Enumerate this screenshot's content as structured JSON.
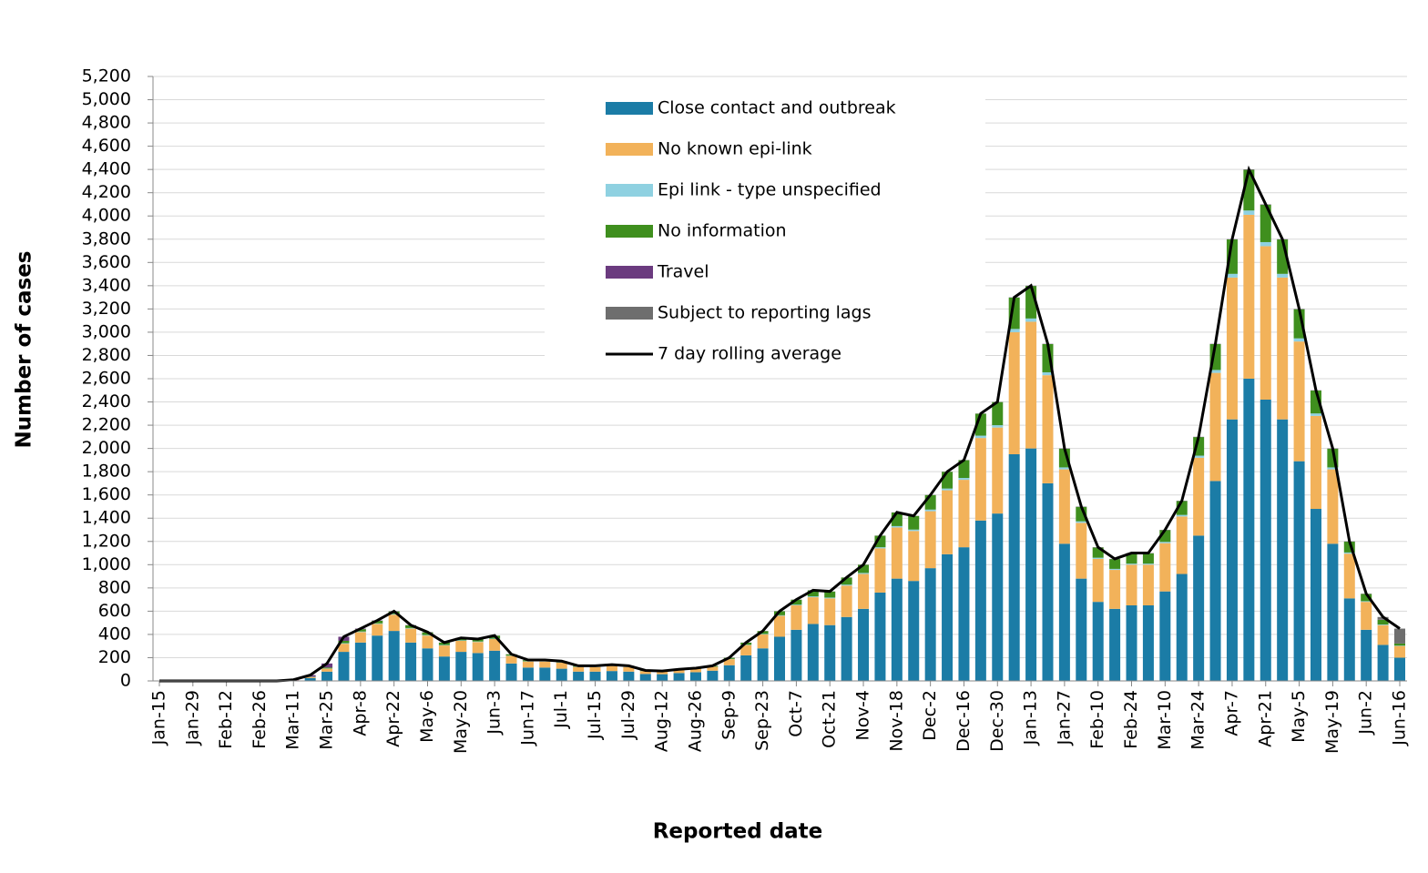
{
  "chart_data": {
    "type": "bar",
    "stacked": true,
    "x_label": "Reported date",
    "y_label": "Number of cases",
    "categories": [
      "Jan-15",
      null,
      "Jan-29",
      null,
      "Feb-12",
      null,
      "Feb-26",
      null,
      "Mar-11",
      null,
      "Mar-25",
      null,
      "Apr-8",
      null,
      "Apr-22",
      null,
      "May-6",
      null,
      "May-20",
      null,
      "Jun-3",
      null,
      "Jun-17",
      null,
      "Jul-1",
      null,
      "Jul-15",
      null,
      "Jul-29",
      null,
      "Aug-12",
      null,
      "Aug-26",
      null,
      "Sep-9",
      null,
      "Sep-23",
      null,
      "Oct-7",
      null,
      "Oct-21",
      null,
      "Nov-4",
      null,
      "Nov-18",
      null,
      "Dec-2",
      null,
      "Dec-16",
      null,
      "Dec-30",
      null,
      "Jan-13",
      null,
      "Jan-27",
      null,
      "Feb-10",
      null,
      "Feb-24",
      null,
      "Mar-10",
      null,
      "Mar-24",
      null,
      "Apr-7",
      null,
      "Apr-21",
      null,
      "May-5",
      null,
      "May-19",
      null,
      "Jun-2",
      null,
      "Jun-16"
    ],
    "series": [
      {
        "name": "Close contact and outbreak",
        "color": "#1b7ca6",
        "values": [
          0,
          0,
          0,
          0,
          0,
          0,
          0,
          0,
          4,
          25,
          80,
          250,
          330,
          390,
          430,
          330,
          280,
          210,
          250,
          240,
          260,
          150,
          115,
          115,
          105,
          80,
          80,
          85,
          80,
          60,
          58,
          68,
          75,
          88,
          135,
          220,
          280,
          380,
          440,
          490,
          480,
          550,
          620,
          760,
          880,
          860,
          970,
          1090,
          1150,
          1380,
          1440,
          1950,
          2000,
          1700,
          1180,
          880,
          680,
          620,
          650,
          650,
          770,
          920,
          1250,
          1720,
          2250,
          2600,
          2420,
          2250,
          1890,
          1480,
          1180,
          710,
          440,
          310,
          200
        ]
      },
      {
        "name": "No known epi-link",
        "color": "#f2b25a",
        "values": [
          0,
          0,
          0,
          0,
          0,
          0,
          0,
          0,
          2,
          8,
          25,
          70,
          90,
          100,
          140,
          120,
          110,
          95,
          95,
          95,
          100,
          65,
          52,
          52,
          52,
          40,
          40,
          44,
          40,
          24,
          21,
          26,
          28,
          33,
          52,
          88,
          120,
          180,
          210,
          230,
          230,
          270,
          300,
          380,
          440,
          430,
          490,
          550,
          580,
          710,
          740,
          1050,
          1090,
          930,
          640,
          480,
          370,
          335,
          350,
          350,
          415,
          495,
          670,
          930,
          1220,
          1410,
          1320,
          1220,
          1030,
          800,
          640,
          385,
          240,
          170,
          100
        ]
      },
      {
        "name": "Epi link - type unspecified",
        "color": "#8fd1e1",
        "values": [
          0,
          0,
          0,
          0,
          0,
          0,
          0,
          0,
          0,
          1,
          2,
          5,
          5,
          5,
          5,
          5,
          5,
          4,
          4,
          4,
          4,
          3,
          2,
          2,
          2,
          2,
          2,
          2,
          2,
          1,
          1,
          1,
          1,
          1,
          2,
          3,
          4,
          5,
          6,
          7,
          7,
          8,
          9,
          10,
          12,
          12,
          14,
          15,
          16,
          20,
          20,
          28,
          28,
          25,
          17,
          13,
          10,
          9,
          9,
          9,
          11,
          13,
          18,
          25,
          32,
          37,
          35,
          32,
          27,
          21,
          17,
          10,
          6,
          5,
          3
        ]
      },
      {
        "name": "No information",
        "color": "#3f8f1e",
        "values": [
          0,
          0,
          0,
          0,
          0,
          0,
          0,
          0,
          0,
          2,
          8,
          20,
          20,
          22,
          23,
          23,
          23,
          20,
          20,
          20,
          25,
          11,
          10,
          10,
          10,
          7,
          7,
          8,
          7,
          4,
          4,
          4,
          5,
          7,
          10,
          18,
          25,
          34,
          43,
          52,
          52,
          61,
          70,
          99,
          117,
          117,
          125,
          144,
          153,
          189,
          199,
          270,
          280,
          243,
          161,
          125,
          88,
          84,
          89,
          89,
          102,
          120,
          160,
          223,
          296,
          350,
          322,
          296,
          251,
          197,
          161,
          93,
          62,
          40,
          20
        ]
      },
      {
        "name": "Travel",
        "color": "#6b3b7f",
        "values": [
          0,
          0,
          0,
          0,
          0,
          0,
          0,
          0,
          4,
          14,
          35,
          35,
          5,
          3,
          2,
          2,
          2,
          1,
          1,
          1,
          1,
          1,
          1,
          1,
          1,
          1,
          1,
          1,
          1,
          1,
          1,
          1,
          1,
          1,
          1,
          1,
          1,
          1,
          1,
          1,
          1,
          1,
          1,
          1,
          1,
          1,
          1,
          1,
          1,
          1,
          1,
          2,
          2,
          2,
          2,
          2,
          2,
          2,
          2,
          2,
          2,
          2,
          2,
          2,
          2,
          3,
          3,
          2,
          2,
          2,
          2,
          2,
          2,
          2,
          2
        ]
      },
      {
        "name": "Subject to reporting lags",
        "color": "#6e6e6e",
        "values": [
          0,
          0,
          0,
          0,
          0,
          0,
          0,
          0,
          0,
          0,
          0,
          0,
          0,
          0,
          0,
          0,
          0,
          0,
          0,
          0,
          0,
          0,
          0,
          0,
          0,
          0,
          0,
          0,
          0,
          0,
          0,
          0,
          0,
          0,
          0,
          0,
          0,
          0,
          0,
          0,
          0,
          0,
          0,
          0,
          0,
          0,
          0,
          0,
          0,
          0,
          0,
          0,
          0,
          0,
          0,
          0,
          0,
          0,
          0,
          0,
          0,
          0,
          0,
          0,
          0,
          0,
          0,
          0,
          0,
          0,
          0,
          0,
          0,
          23,
          125
        ]
      },
      {
        "name": "7 day rolling average",
        "type": "line",
        "color": "#000000",
        "values": [
          0,
          0,
          0,
          0,
          0,
          0,
          0,
          0,
          10,
          50,
          150,
          380,
          450,
          520,
          600,
          480,
          420,
          330,
          370,
          360,
          390,
          230,
          180,
          180,
          170,
          130,
          130,
          140,
          130,
          90,
          85,
          100,
          110,
          130,
          200,
          330,
          430,
          600,
          700,
          780,
          770,
          890,
          1000,
          1250,
          1450,
          1420,
          1600,
          1800,
          1900,
          2300,
          2400,
          3300,
          3400,
          2900,
          2000,
          1500,
          1150,
          1050,
          1100,
          1100,
          1300,
          1550,
          2100,
          2900,
          3800,
          4400,
          4100,
          3800,
          3200,
          2500,
          2000,
          1200,
          750,
          550,
          450
        ]
      }
    ],
    "ylim": [
      0,
      5200
    ],
    "yticks": [
      0,
      200,
      400,
      600,
      800,
      {
        "value": 1000,
        "label": "1,000"
      },
      {
        "value": 1200,
        "label": "1,200"
      },
      {
        "value": 1400,
        "label": "1,400"
      },
      {
        "value": 1600,
        "label": "1,600"
      },
      {
        "value": 1800,
        "label": "1,800"
      },
      {
        "value": 2000,
        "label": "2,000"
      },
      {
        "value": 2200,
        "label": "2,200"
      },
      {
        "value": 2400,
        "label": "2,400"
      },
      {
        "value": 2600,
        "label": "2,600"
      },
      {
        "value": 2800,
        "label": "2,800"
      },
      {
        "value": 3000,
        "label": "3,000"
      },
      {
        "value": 3200,
        "label": "3,200"
      },
      {
        "value": 3400,
        "label": "3,400"
      },
      {
        "value": 3600,
        "label": "3,600"
      },
      {
        "value": 3800,
        "label": "3,800"
      },
      {
        "value": 4000,
        "label": "4,000"
      },
      {
        "value": 4200,
        "label": "4,200"
      },
      {
        "value": 4400,
        "label": "4,400"
      },
      {
        "value": 4600,
        "label": "4,600"
      },
      {
        "value": 4800,
        "label": "4,800"
      },
      {
        "value": 5000,
        "label": "5,000"
      },
      {
        "value": 5200,
        "label": "5,200"
      }
    ],
    "grid": true
  }
}
